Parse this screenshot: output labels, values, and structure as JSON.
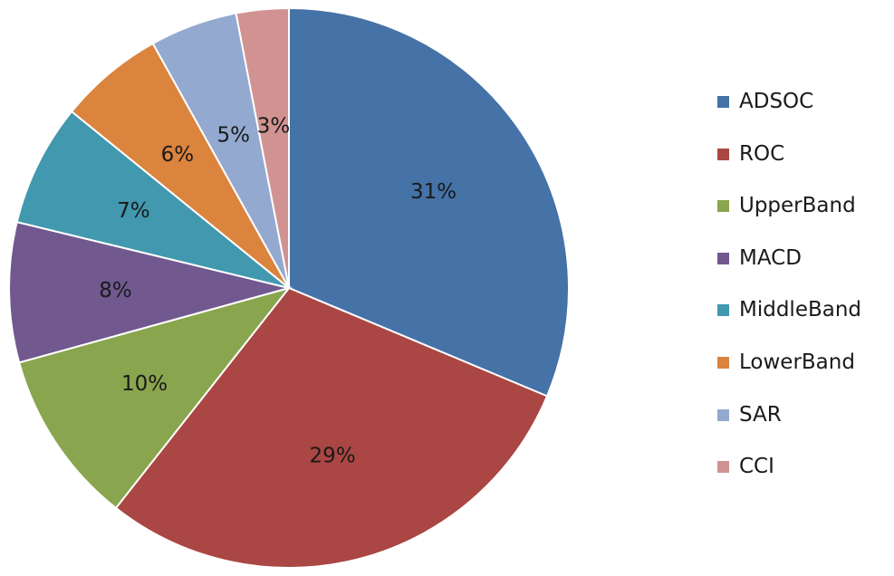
{
  "chart_data": {
    "type": "pie",
    "title": "",
    "legend_position": "right",
    "slices": [
      {
        "name": "ADSOC",
        "value": 31,
        "label": "31%",
        "color": "#4572A7"
      },
      {
        "name": "ROC",
        "value": 29,
        "label": "29%",
        "color": "#AA4643"
      },
      {
        "name": "UpperBand",
        "value": 10,
        "label": "10%",
        "color": "#89A54E"
      },
      {
        "name": "MACD",
        "value": 8,
        "label": "8%",
        "color": "#71588F"
      },
      {
        "name": "MiddleBand",
        "value": 7,
        "label": "7%",
        "color": "#4198AF"
      },
      {
        "name": "LowerBand",
        "value": 6,
        "label": "6%",
        "color": "#DB843D"
      },
      {
        "name": "SAR",
        "value": 5,
        "label": "5%",
        "color": "#93A9CF"
      },
      {
        "name": "CCI",
        "value": 3,
        "label": "3%",
        "color": "#D19392"
      }
    ]
  }
}
